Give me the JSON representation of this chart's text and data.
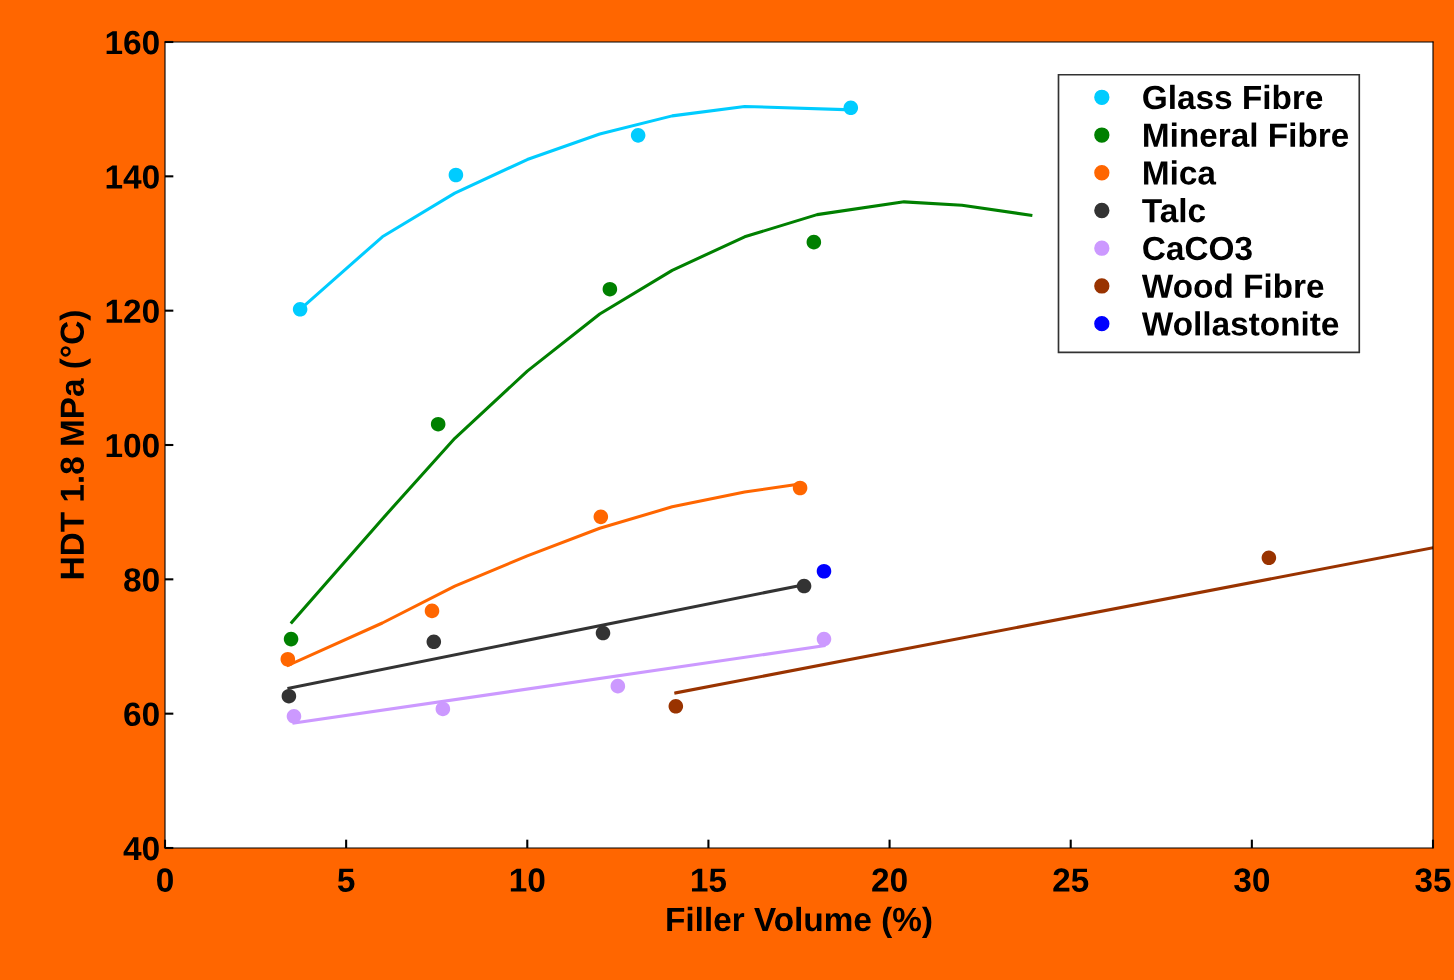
{
  "chart_data": {
    "type": "scatter",
    "xlabel": "Filler Volume (%)",
    "ylabel": "HDT 1.8 MPa (°C)",
    "xlim": [
      0,
      35
    ],
    "ylim": [
      40,
      160
    ],
    "xticks": [
      0,
      5,
      10,
      15,
      20,
      25,
      30,
      35
    ],
    "yticks": [
      40,
      60,
      80,
      100,
      120,
      140,
      160
    ],
    "grid": false,
    "legend": "top right",
    "marker": "circle",
    "series": [
      {
        "name": "Glass Fibre",
        "color": "#00ccff",
        "x": [
          3.73,
          8.03,
          13.06,
          18.93
        ],
        "values": [
          120.2,
          140.2,
          146.1,
          150.2
        ]
      },
      {
        "name": "Mineral Fibre",
        "color": "#008000",
        "x": [
          3.48,
          7.54,
          12.28,
          17.91
        ],
        "values": [
          71.1,
          103.1,
          123.2,
          130.2
        ]
      },
      {
        "name": "Mica",
        "color": "#ff6600",
        "x": [
          3.39,
          7.37,
          12.03,
          17.53
        ],
        "values": [
          68.1,
          75.3,
          89.3,
          93.6
        ]
      },
      {
        "name": "Talc",
        "color": "#333333",
        "x": [
          3.42,
          7.42,
          12.09,
          17.64
        ],
        "values": [
          62.6,
          70.7,
          72.0,
          79.0
        ]
      },
      {
        "name": "CaCO3",
        "color": "#cc99ff",
        "x": [
          3.56,
          7.67,
          12.5,
          18.19
        ],
        "values": [
          59.6,
          60.7,
          64.1,
          71.1
        ]
      },
      {
        "name": "Wood Fibre",
        "color": "#993300",
        "x": [
          14.1,
          30.47
        ],
        "values": [
          61.1,
          83.2
        ]
      },
      {
        "name": "Wollastonite",
        "color": "#0000ff",
        "x": [
          18.19
        ],
        "values": [
          81.2
        ]
      },
      {
        "type": "line",
        "marker": "none",
        "color": "#00ccff",
        "x": [
          3.73,
          6,
          8,
          10,
          12,
          14,
          16,
          18.93
        ],
        "values": [
          120.2,
          131,
          137.5,
          142.5,
          146.3,
          149,
          150.4,
          149.9
        ]
      },
      {
        "type": "line",
        "marker": "none",
        "color": "#008000",
        "x": [
          3.5,
          6,
          8,
          10,
          12,
          14,
          16,
          18,
          20.4,
          22,
          23.9
        ],
        "values": [
          73.6,
          89,
          101,
          111,
          119.5,
          126,
          131,
          134.3,
          136.2,
          135.7,
          134.2
        ]
      },
      {
        "type": "line",
        "marker": "none",
        "color": "#ff6600",
        "x": [
          3.4,
          6,
          8,
          10,
          12,
          14,
          16,
          17.53
        ],
        "values": [
          67.2,
          73.5,
          79,
          83.5,
          87.6,
          90.8,
          93,
          94.2
        ]
      },
      {
        "type": "line",
        "marker": "none",
        "color": "#333333",
        "x": [
          3.42,
          17.64
        ],
        "values": [
          63.8,
          79.2
        ]
      },
      {
        "type": "line",
        "marker": "none",
        "color": "#cc99ff",
        "x": [
          3.56,
          18.19
        ],
        "values": [
          58.6,
          70.1
        ]
      },
      {
        "type": "line",
        "marker": "none",
        "color": "#993300",
        "x": [
          14.1,
          35
        ],
        "values": [
          63.1,
          84.7
        ]
      }
    ]
  }
}
